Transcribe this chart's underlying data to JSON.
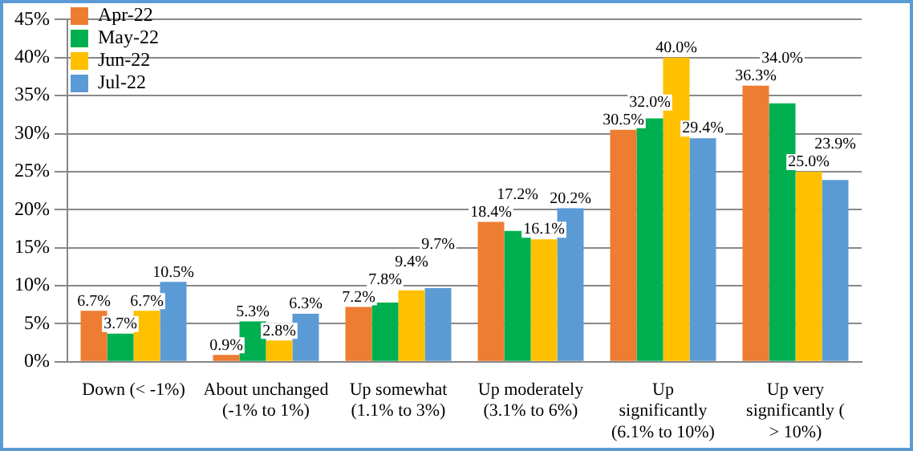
{
  "chart_data": {
    "type": "bar",
    "categories": [
      "Down (< -1%)",
      "About unchanged (-1% to 1%)",
      "Up somewhat (1.1% to 3%)",
      "Up moderately (3.1% to 6%)",
      "Up significantly (6.1% to 10%)",
      "Up very significantly ( > 10%)"
    ],
    "series": [
      {
        "name": "Apr-22",
        "color": "#ed7d31",
        "values": [
          6.7,
          0.9,
          7.2,
          18.4,
          30.5,
          36.3
        ],
        "value_labels": [
          "6.7%",
          "0.9%",
          "7.2%",
          "18.4%",
          "30.5%",
          "36.3%"
        ]
      },
      {
        "name": "May-22",
        "color": "#00b050",
        "values": [
          3.7,
          5.3,
          7.8,
          17.2,
          32.0,
          34.0
        ],
        "value_labels": [
          "3.7%",
          "5.3%",
          "7.8%",
          "17.2%",
          "32.0%",
          "34.0%"
        ]
      },
      {
        "name": "Jun-22",
        "color": "#ffc000",
        "values": [
          6.7,
          2.8,
          9.4,
          16.1,
          40.0,
          25.0
        ],
        "value_labels": [
          "6.7%",
          "2.8%",
          "9.4%",
          "16.1%",
          "40.0%",
          "25.0%"
        ]
      },
      {
        "name": "Jul-22",
        "color": "#5b9bd5",
        "values": [
          10.5,
          6.3,
          9.7,
          20.2,
          29.4,
          23.9
        ],
        "value_labels": [
          "10.5%",
          "6.3%",
          "9.7%",
          "20.2%",
          "29.4%",
          "23.9%"
        ]
      }
    ],
    "ylim": [
      0,
      45
    ],
    "yticks": [
      {
        "value": 0,
        "label": "0%"
      },
      {
        "value": 5,
        "label": "5%"
      },
      {
        "value": 10,
        "label": "10%"
      },
      {
        "value": 15,
        "label": "15%"
      },
      {
        "value": 20,
        "label": "20%"
      },
      {
        "value": 25,
        "label": "25%"
      },
      {
        "value": 30,
        "label": "30%"
      },
      {
        "value": 35,
        "label": "35%"
      },
      {
        "value": 40,
        "label": "40%"
      },
      {
        "value": 45,
        "label": "45%"
      }
    ],
    "grid": "y",
    "legend": "top left"
  }
}
